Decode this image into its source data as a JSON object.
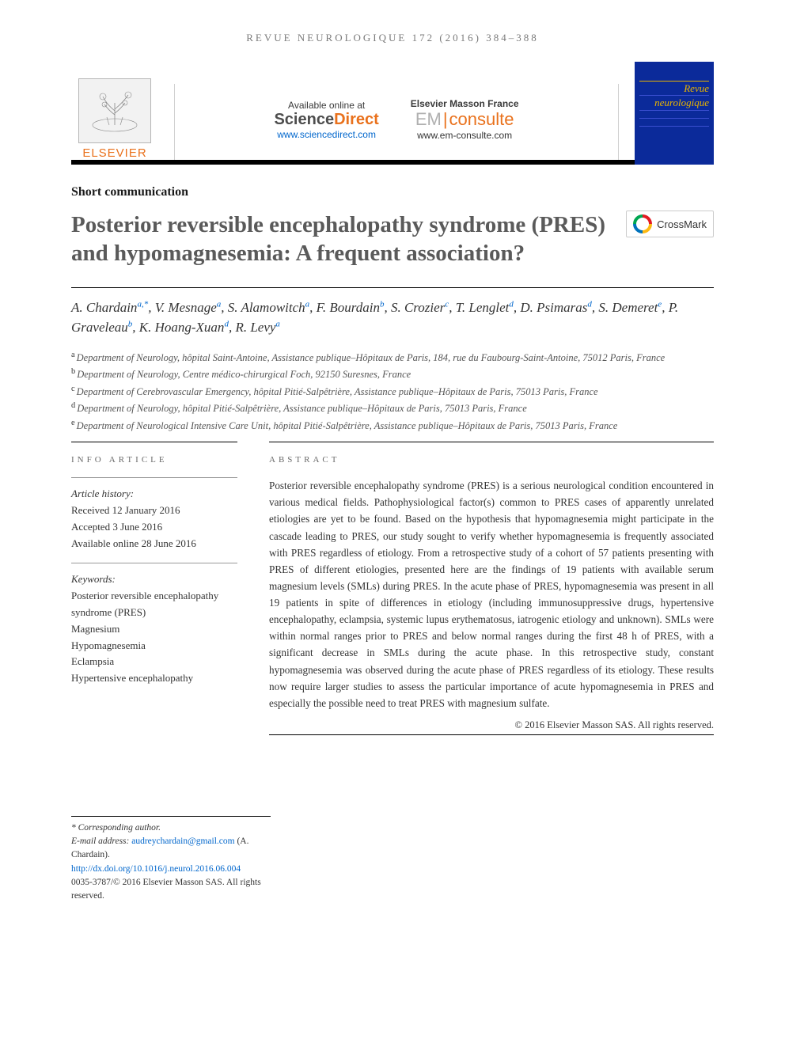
{
  "running_head": "REVUE NEUROLOGIQUE 172 (2016) 384–388",
  "header": {
    "elsevier_label": "ELSEVIER",
    "available_label": "Available online at",
    "sciencedirect_a": "Science",
    "sciencedirect_b": "Direct",
    "sd_url": "www.sciencedirect.com",
    "masson_label": "Elsevier Masson France",
    "em_a": "EM",
    "em_b": "consulte",
    "em_url": "www.em-consulte.com",
    "journal_cover_line1": "Revue",
    "journal_cover_line2": "neurologique"
  },
  "article_type": "Short communication",
  "title": "Posterior reversible encephalopathy syndrome (PRES) and hypomagnesemia: A frequent association?",
  "crossmark_label": "CrossMark",
  "authors_html": "A. Chardain",
  "authors": [
    {
      "name": "A. Chardain",
      "aff": "a,*"
    },
    {
      "name": "V. Mesnage",
      "aff": "a"
    },
    {
      "name": "S. Alamowitch",
      "aff": "a"
    },
    {
      "name": "F. Bourdain",
      "aff": "b"
    },
    {
      "name": "S. Crozier",
      "aff": "c"
    },
    {
      "name": "T. Lenglet",
      "aff": "d"
    },
    {
      "name": "D. Psimaras",
      "aff": "d"
    },
    {
      "name": "S. Demeret",
      "aff": "e"
    },
    {
      "name": "P. Graveleau",
      "aff": "b"
    },
    {
      "name": "K. Hoang-Xuan",
      "aff": "d"
    },
    {
      "name": "R. Levy",
      "aff": "a"
    }
  ],
  "affiliations": [
    {
      "key": "a",
      "text": "Department of Neurology, hôpital Saint-Antoine, Assistance publique–Hôpitaux de Paris, 184, rue du Faubourg-Saint-Antoine, 75012 Paris, France"
    },
    {
      "key": "b",
      "text": "Department of Neurology, Centre médico-chirurgical Foch, 92150 Suresnes, France"
    },
    {
      "key": "c",
      "text": "Department of Cerebrovascular Emergency, hôpital Pitié-Salpêtrière, Assistance publique–Hôpitaux de Paris, 75013 Paris, France"
    },
    {
      "key": "d",
      "text": "Department of Neurology, hôpital Pitié-Salpêtrière, Assistance publique–Hôpitaux de Paris, 75013 Paris, France"
    },
    {
      "key": "e",
      "text": "Department of Neurological Intensive Care Unit, hôpital Pitié-Salpêtrière, Assistance publique–Hôpitaux de Paris, 75013 Paris, France"
    }
  ],
  "info": {
    "label": "info article",
    "history_label": "Article history:",
    "received": "Received 12 January 2016",
    "accepted": "Accepted 3 June 2016",
    "online": "Available online 28 June 2016",
    "keywords_label": "Keywords:",
    "keywords": [
      "Posterior reversible encephalopathy syndrome (PRES)",
      "Magnesium",
      "Hypomagnesemia",
      "Eclampsia",
      "Hypertensive encephalopathy"
    ]
  },
  "abstract": {
    "label": "abstract",
    "text": "Posterior reversible encephalopathy syndrome (PRES) is a serious neurological condition encountered in various medical fields. Pathophysiological factor(s) common to PRES cases of apparently unrelated etiologies are yet to be found. Based on the hypothesis that hypomagnesemia might participate in the cascade leading to PRES, our study sought to verify whether hypomagnesemia is frequently associated with PRES regardless of etiology. From a retrospective study of a cohort of 57 patients presenting with PRES of different etiologies, presented here are the findings of 19 patients with available serum magnesium levels (SMLs) during PRES. In the acute phase of PRES, hypomagnesemia was present in all 19 patients in spite of differences in etiology (including immunosuppressive drugs, hypertensive encephalopathy, eclampsia, systemic lupus erythematosus, iatrogenic etiology and unknown). SMLs were within normal ranges prior to PRES and below normal ranges during the first 48 h of PRES, with a significant decrease in SMLs during the acute phase. In this retrospective study, constant hypomagnesemia was observed during the acute phase of PRES regardless of its etiology. These results now require larger studies to assess the particular importance of acute hypomagnesemia in PRES and especially the possible need to treat PRES with magnesium sulfate.",
    "copyright": "© 2016 Elsevier Masson SAS. All rights reserved."
  },
  "footer": {
    "corresponding": "* Corresponding author.",
    "email_label": "E-mail address:",
    "email": "audreychardain@gmail.com",
    "email_attribution": "(A. Chardain).",
    "doi": "http://dx.doi.org/10.1016/j.neurol.2016.06.004",
    "issn_copy": "0035-3787/© 2016 Elsevier Masson SAS. All rights reserved."
  },
  "colors": {
    "orange": "#e9711c",
    "link_blue": "#0066cc",
    "cover_blue": "#0b2a9a",
    "cover_gold": "#e9b400"
  }
}
